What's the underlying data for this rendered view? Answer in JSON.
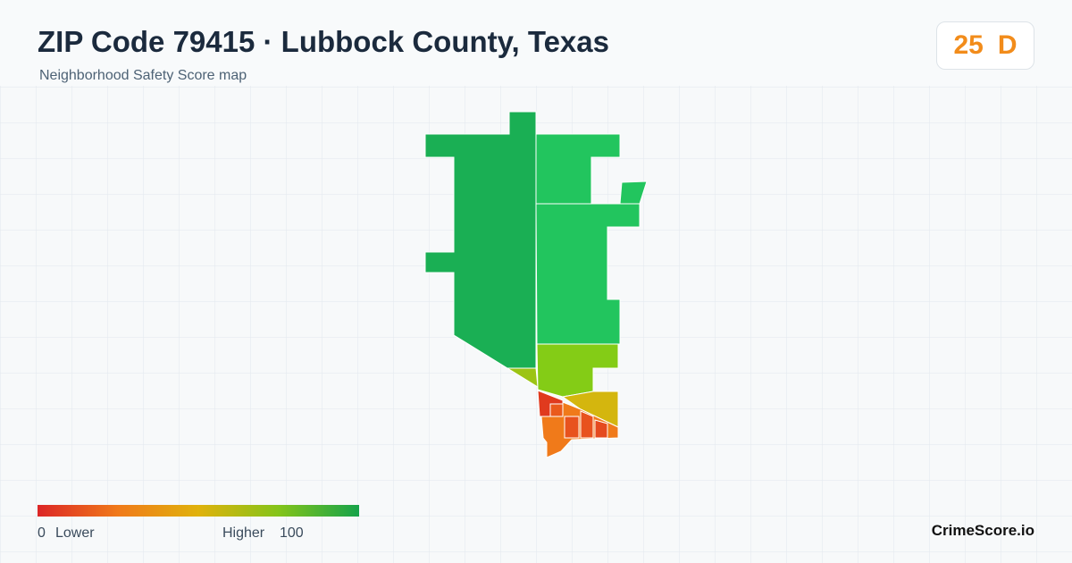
{
  "header": {
    "title": "ZIP Code 79415 · Lubbock County, Texas",
    "subtitle": "Neighborhood Safety Score map"
  },
  "score": {
    "value": 25,
    "grade": "D"
  },
  "legend": {
    "min": 0,
    "min_label": "Lower",
    "max_label": "Higher",
    "max": 100
  },
  "brand": "CrimeScore.io"
}
